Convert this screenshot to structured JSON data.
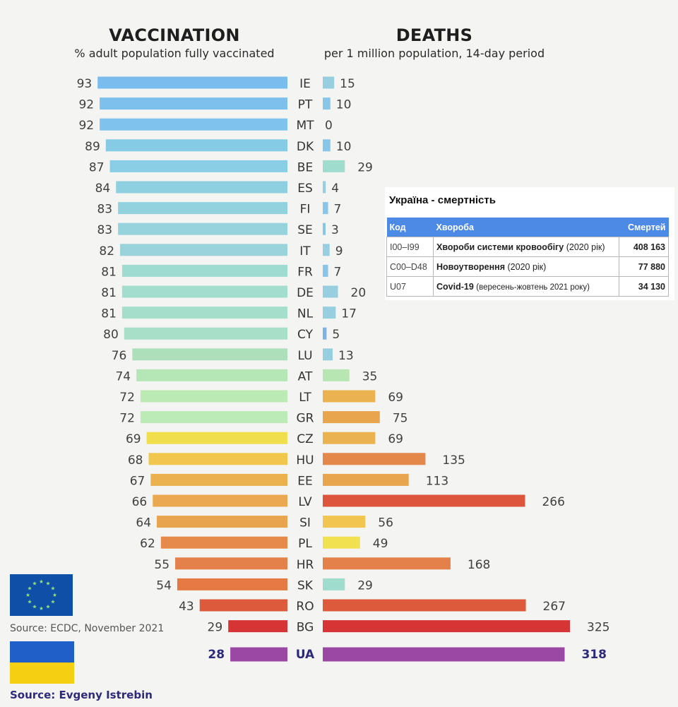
{
  "vaccination": {
    "title": "VACCINATION",
    "subtitle": "% adult population fully vaccinated"
  },
  "deaths": {
    "title": "DEATHS",
    "subtitle": "per 1 million population, 14-day period"
  },
  "chart_data": [
    {
      "type": "bar",
      "orientation": "horizontal",
      "title": "VACCINATION",
      "subtitle": "% adult population fully vaccinated",
      "categories": [
        "IE",
        "PT",
        "MT",
        "DK",
        "BE",
        "ES",
        "FI",
        "SE",
        "IT",
        "FR",
        "DE",
        "NL",
        "CY",
        "LU",
        "AT",
        "LT",
        "GR",
        "CZ",
        "HU",
        "EE",
        "LV",
        "SI",
        "PL",
        "HR",
        "SK",
        "RO",
        "BG",
        "UA"
      ],
      "values": [
        93,
        92,
        92,
        89,
        87,
        84,
        83,
        83,
        82,
        81,
        81,
        81,
        80,
        76,
        74,
        72,
        72,
        69,
        68,
        67,
        66,
        64,
        62,
        55,
        54,
        43,
        29,
        28
      ],
      "colors": [
        "#7bbcef",
        "#7dc0ee",
        "#7fc2ee",
        "#86cbe6",
        "#89cee4",
        "#8ed0e0",
        "#92d2de",
        "#96d3dc",
        "#9ad4da",
        "#9fdcd0",
        "#a2ddcd",
        "#a5decb",
        "#a8dfc8",
        "#addfbb",
        "#b5e6b6",
        "#bbeab5",
        "#bdebb7",
        "#f1de4c",
        "#f0c74c",
        "#ecb14f",
        "#eaa950",
        "#e9a44f",
        "#e58a4a",
        "#e4804a",
        "#e57a44",
        "#dd5a3c",
        "#d73535",
        "#9b48a5"
      ],
      "direction": "right-to-left"
    },
    {
      "type": "bar",
      "orientation": "horizontal",
      "title": "DEATHS",
      "subtitle": "per 1 million population, 14-day period",
      "categories": [
        "IE",
        "PT",
        "MT",
        "DK",
        "BE",
        "ES",
        "FI",
        "SE",
        "IT",
        "FR",
        "DE",
        "NL",
        "CY",
        "LU",
        "AT",
        "LT",
        "GR",
        "CZ",
        "HU",
        "EE",
        "LV",
        "SI",
        "PL",
        "HR",
        "SK",
        "RO",
        "BG",
        "UA"
      ],
      "values": [
        15,
        10,
        0,
        10,
        29,
        4,
        7,
        3,
        9,
        7,
        20,
        17,
        5,
        13,
        35,
        69,
        75,
        69,
        135,
        113,
        266,
        56,
        49,
        168,
        29,
        267,
        325,
        318
      ],
      "colors": [
        "#98cfe0",
        "#87c6e8",
        "#87c6e8",
        "#87c6e8",
        "#9fdccd",
        "#98cfe0",
        "#87c6e8",
        "#87c6e8",
        "#98cfe0",
        "#87c6e8",
        "#98cfe0",
        "#98cfe0",
        "#7bb3e5",
        "#98cfe0",
        "#b8e6b2",
        "#ebb350",
        "#e9a44e",
        "#ebb350",
        "#e4874a",
        "#e9a44e",
        "#dd553c",
        "#f0c550",
        "#f1e050",
        "#e4804a",
        "#9fdccd",
        "#dd5a3c",
        "#d73535",
        "#9b48a5"
      ],
      "direction": "left-to-right"
    }
  ],
  "highlight": {
    "country": "UA",
    "color": "#2e2a7a"
  },
  "mortality_table": {
    "title": "Україна - смертність",
    "headers": [
      "Код",
      "Хвороба",
      "Смертей"
    ],
    "rows": [
      {
        "code": "I00–I99",
        "disease": "Хвороби системи кровообігу",
        "note": "(2020 рік)",
        "deaths": "408 163"
      },
      {
        "code": "C00–D48",
        "disease": "Новоутворення",
        "note": "(2020 рік)",
        "deaths": "77 880"
      },
      {
        "code": "U07",
        "disease": "Covid-19",
        "note": "(вересень-жовтень 2021 року)",
        "deaths": "34 130"
      }
    ]
  },
  "sources": {
    "ecdc": "Source: ECDC, November 2021",
    "author": "Source: Evgeny Istrebin"
  },
  "colors": {
    "background": "#f4f4f2",
    "table_header": "#4d8ae6",
    "eu_flag": "#0f4fa8",
    "eu_star": "#8fe07a",
    "ua_blue": "#1f5fc8",
    "ua_yellow": "#f4cf12"
  }
}
